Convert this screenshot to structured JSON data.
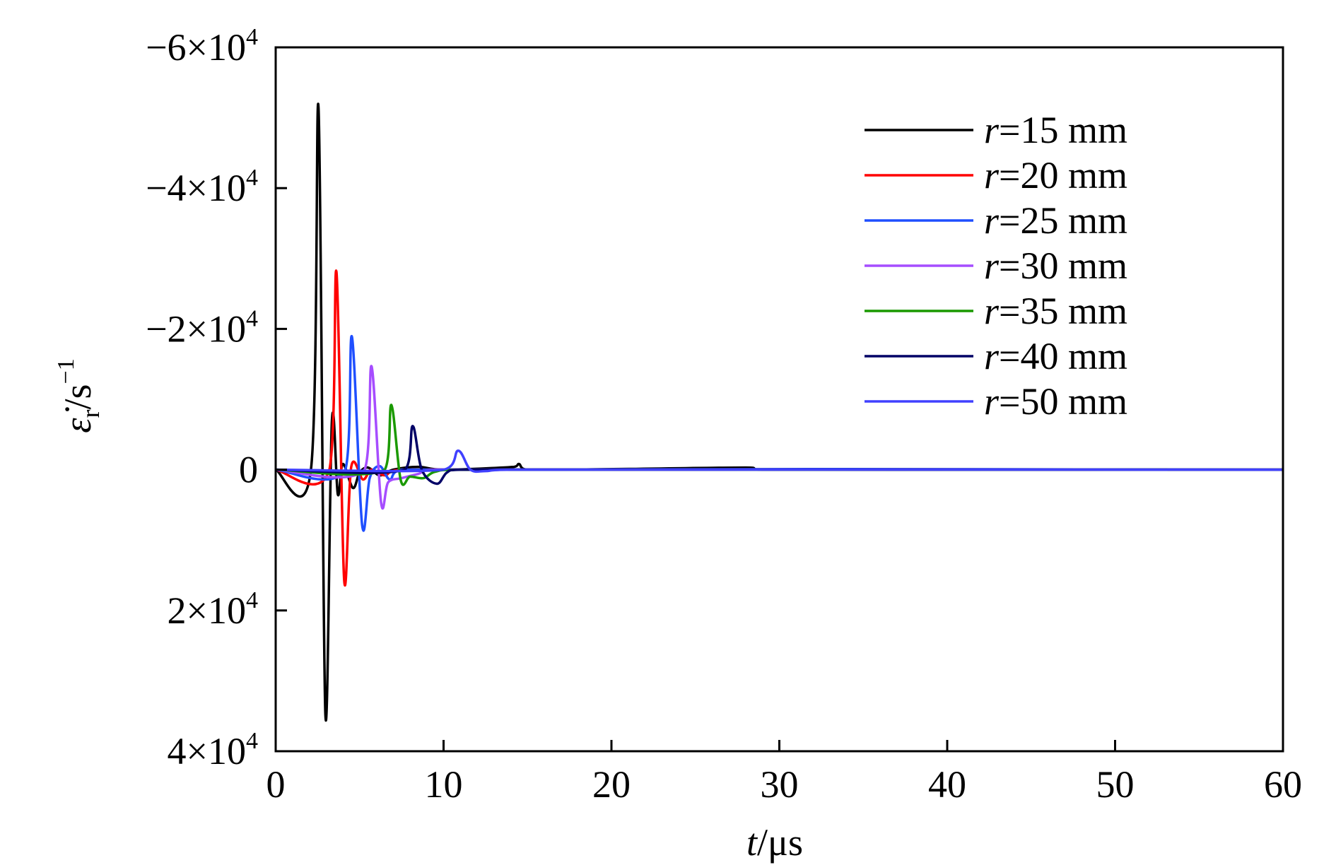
{
  "chart_data": {
    "type": "line",
    "xlabel": {
      "var": "t",
      "unit": "/μs"
    },
    "ylabel": {
      "var": "ε̇",
      "sub": "r",
      "unit": "/s",
      "exp": "−1"
    },
    "xlim": [
      0,
      60
    ],
    "ylim": [
      40000,
      -60000
    ],
    "y_inverted": true,
    "grid": false,
    "legend_position": "top-right",
    "x_ticks": [
      {
        "value": 0,
        "label": "0"
      },
      {
        "value": 10,
        "label": "10"
      },
      {
        "value": 20,
        "label": "20"
      },
      {
        "value": 30,
        "label": "30"
      },
      {
        "value": 40,
        "label": "40"
      },
      {
        "value": 50,
        "label": "50"
      },
      {
        "value": 60,
        "label": "60"
      }
    ],
    "y_ticks": [
      {
        "value": -60000,
        "base": "−6×10",
        "exp": "4"
      },
      {
        "value": -40000,
        "base": "−4×10",
        "exp": "4"
      },
      {
        "value": -20000,
        "base": "−2×10",
        "exp": "4"
      },
      {
        "value": 0,
        "base": "0",
        "exp": ""
      },
      {
        "value": 20000,
        "base": "2×10",
        "exp": "4"
      },
      {
        "value": 40000,
        "base": "4×10",
        "exp": "4"
      }
    ],
    "series": [
      {
        "name": "r=15 mm",
        "var": "r",
        "label": "=15 mm",
        "color": "#000000",
        "points": [
          [
            0,
            0
          ],
          [
            2.1,
            0
          ],
          [
            2.55,
            -51500
          ],
          [
            2.96,
            34800
          ],
          [
            3.35,
            -7000
          ],
          [
            3.7,
            3500
          ],
          [
            4.0,
            -800
          ],
          [
            4.6,
            2600
          ],
          [
            5.0,
            400
          ],
          [
            5.5,
            -300
          ],
          [
            6.2,
            800
          ],
          [
            7.0,
            0
          ],
          [
            8.5,
            -400
          ],
          [
            10,
            0
          ],
          [
            14.2,
            -400
          ],
          [
            14.5,
            -800
          ],
          [
            15,
            0
          ],
          [
            28,
            -300
          ],
          [
            29,
            0
          ],
          [
            60,
            0
          ]
        ]
      },
      {
        "name": "r=20 mm",
        "var": "r",
        "label": "=20 mm",
        "color": "#ff0000",
        "points": [
          [
            0,
            0
          ],
          [
            3.2,
            0
          ],
          [
            3.62,
            -28100
          ],
          [
            4.08,
            15700
          ],
          [
            4.5,
            -400
          ],
          [
            5.2,
            1400
          ],
          [
            5.7,
            0
          ],
          [
            6.5,
            800
          ],
          [
            7.5,
            0
          ],
          [
            60,
            0
          ]
        ]
      },
      {
        "name": "r=25 mm",
        "var": "r",
        "label": "=25 mm",
        "color": "#1f4fff",
        "points": [
          [
            0,
            0
          ],
          [
            4.15,
            0
          ],
          [
            4.54,
            -18900
          ],
          [
            5.15,
            7900
          ],
          [
            5.6,
            1200
          ],
          [
            6.2,
            -500
          ],
          [
            6.8,
            1400
          ],
          [
            7.5,
            0
          ],
          [
            60,
            0
          ]
        ]
      },
      {
        "name": "r=30 mm",
        "var": "r",
        "label": "=30 mm",
        "color": "#a64dff",
        "points": [
          [
            0,
            0
          ],
          [
            5.3,
            0
          ],
          [
            5.71,
            -14700
          ],
          [
            6.28,
            4700
          ],
          [
            6.7,
            1800
          ],
          [
            7.5,
            1200
          ],
          [
            8.5,
            600
          ],
          [
            9.5,
            0
          ],
          [
            60,
            0
          ]
        ]
      },
      {
        "name": "r=35 mm",
        "var": "r",
        "label": "=35 mm",
        "color": "#1a9900",
        "points": [
          [
            0,
            0
          ],
          [
            6.5,
            0
          ],
          [
            6.89,
            -9200
          ],
          [
            7.45,
            1500
          ],
          [
            8.0,
            1000
          ],
          [
            8.8,
            1200
          ],
          [
            9.5,
            300
          ],
          [
            11,
            0
          ],
          [
            60,
            0
          ]
        ]
      },
      {
        "name": "r=40 mm",
        "var": "r",
        "label": "=40 mm",
        "color": "#000066",
        "points": [
          [
            0,
            0
          ],
          [
            7.7,
            0
          ],
          [
            8.16,
            -6200
          ],
          [
            8.7,
            0
          ],
          [
            9.6,
            2000
          ],
          [
            10.2,
            400
          ],
          [
            11,
            0
          ],
          [
            60,
            0
          ]
        ]
      },
      {
        "name": "r=50 mm",
        "var": "r",
        "label": "=50 mm",
        "color": "#4040ff",
        "points": [
          [
            0,
            0
          ],
          [
            10.0,
            0
          ],
          [
            10.87,
            -2700
          ],
          [
            11.6,
            0
          ],
          [
            12.5,
            200
          ],
          [
            14,
            0
          ],
          [
            60,
            0
          ]
        ]
      }
    ]
  }
}
